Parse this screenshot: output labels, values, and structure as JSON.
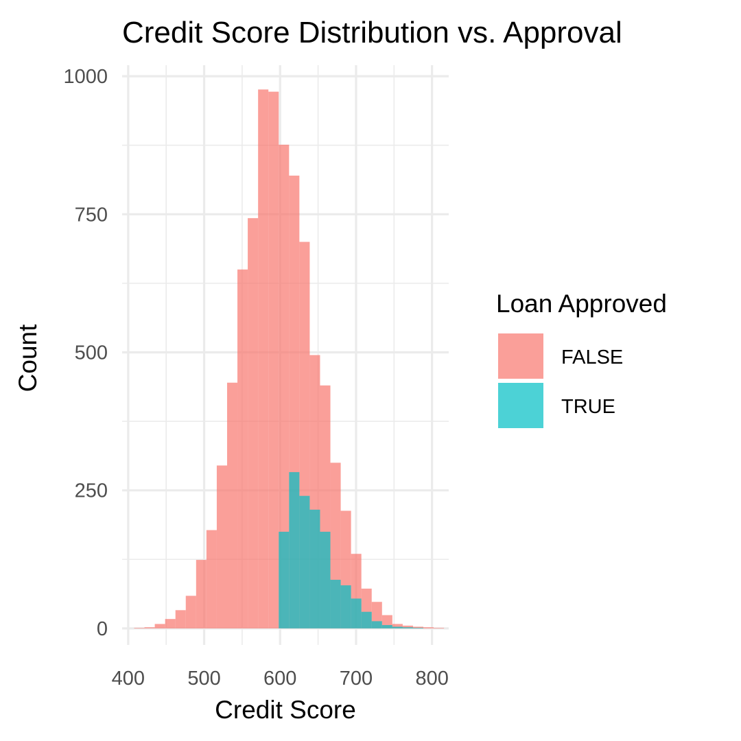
{
  "chart_data": {
    "type": "bar",
    "subtype": "overlaid-histogram",
    "title": "Credit Score Distribution vs. Approval",
    "xlabel": "Credit Score",
    "ylabel": "Count",
    "xlim": [
      392,
      822
    ],
    "ylim": [
      -30,
      1020
    ],
    "x_ticks": [
      400,
      500,
      600,
      700,
      800
    ],
    "y_ticks": [
      0,
      250,
      500,
      750,
      1000
    ],
    "x_tick_labels": [
      "400",
      "500",
      "600",
      "700",
      "800"
    ],
    "y_tick_labels": [
      "0",
      "250",
      "500",
      "750",
      "1000"
    ],
    "bin_width": 13.6,
    "grid": true,
    "legend": {
      "title": "Loan Approved",
      "placement": "right",
      "entries": [
        {
          "label": "FALSE",
          "color": "#F8766D"
        },
        {
          "label": "TRUE",
          "color": "#00BFC4"
        }
      ]
    },
    "series": [
      {
        "name": "FALSE",
        "color": "#F8766D",
        "bins": [
          {
            "x": 414.6,
            "count": 1
          },
          {
            "x": 428.2,
            "count": 2
          },
          {
            "x": 441.8,
            "count": 8
          },
          {
            "x": 455.4,
            "count": 17
          },
          {
            "x": 469.0,
            "count": 33
          },
          {
            "x": 482.6,
            "count": 59
          },
          {
            "x": 496.2,
            "count": 124
          },
          {
            "x": 509.8,
            "count": 178
          },
          {
            "x": 523.4,
            "count": 295
          },
          {
            "x": 537.0,
            "count": 445
          },
          {
            "x": 550.6,
            "count": 650
          },
          {
            "x": 564.2,
            "count": 743
          },
          {
            "x": 577.8,
            "count": 976
          },
          {
            "x": 591.4,
            "count": 972
          },
          {
            "x": 605.0,
            "count": 876
          },
          {
            "x": 618.6,
            "count": 820
          },
          {
            "x": 632.2,
            "count": 700
          },
          {
            "x": 645.8,
            "count": 495
          },
          {
            "x": 659.4,
            "count": 440
          },
          {
            "x": 673.0,
            "count": 300
          },
          {
            "x": 686.6,
            "count": 213
          },
          {
            "x": 700.2,
            "count": 135
          },
          {
            "x": 713.8,
            "count": 72
          },
          {
            "x": 727.4,
            "count": 48
          },
          {
            "x": 741.0,
            "count": 24
          },
          {
            "x": 754.6,
            "count": 8
          },
          {
            "x": 768.2,
            "count": 5
          },
          {
            "x": 781.8,
            "count": 3
          },
          {
            "x": 795.4,
            "count": 2
          },
          {
            "x": 809.0,
            "count": 1
          }
        ]
      },
      {
        "name": "TRUE",
        "color": "#00BFC4",
        "bins": [
          {
            "x": 605.0,
            "count": 175
          },
          {
            "x": 618.6,
            "count": 283
          },
          {
            "x": 632.2,
            "count": 240
          },
          {
            "x": 645.8,
            "count": 215
          },
          {
            "x": 659.4,
            "count": 175
          },
          {
            "x": 673.0,
            "count": 88
          },
          {
            "x": 686.6,
            "count": 78
          },
          {
            "x": 700.2,
            "count": 54
          },
          {
            "x": 713.8,
            "count": 30
          },
          {
            "x": 727.4,
            "count": 13
          },
          {
            "x": 741.0,
            "count": 6
          },
          {
            "x": 754.6,
            "count": 3
          },
          {
            "x": 768.2,
            "count": 2
          },
          {
            "x": 781.8,
            "count": 1
          }
        ]
      }
    ]
  }
}
